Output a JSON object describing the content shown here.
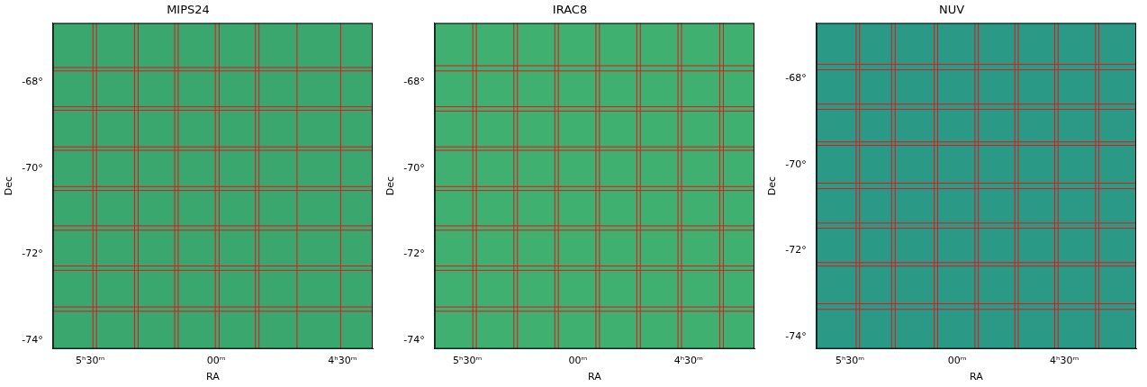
{
  "chart_data": [
    {
      "type": "map",
      "title": "MIPS24",
      "x_label": "RA",
      "y_label": "Dec",
      "grid": false,
      "color": "#e8141c",
      "xlim": [
        5.648,
        4.38
      ],
      "xticks": [
        {
          "value": 5.5,
          "label": "5ʰ30ᵐ"
        },
        {
          "value": 5.0,
          "label": "00ᵐ"
        },
        {
          "value": 4.5,
          "label": "4ʰ30ᵐ"
        }
      ],
      "ylim": [
        -74.19,
        -66.64
      ],
      "yticks": [
        {
          "value": -68,
          "label": "-68°"
        },
        {
          "value": -70,
          "label": "-70°"
        },
        {
          "value": -72,
          "label": "-72°"
        },
        {
          "value": -74,
          "label": "-74°"
        }
      ],
      "vlines": [
        5.489,
        5.475,
        5.324,
        5.31,
        5.165,
        5.151,
        5.004,
        4.989,
        4.845,
        4.831,
        4.68,
        4.507
      ],
      "hlines": [
        -67.67,
        -67.75,
        -68.58,
        -68.66,
        -69.51,
        -69.59,
        -70.43,
        -70.52,
        -71.34,
        -71.44,
        -72.27,
        -72.37,
        -73.22,
        -73.32
      ]
    },
    {
      "type": "map",
      "title": "IRAC8",
      "x_label": "RA",
      "y_label": "Dec",
      "grid": false,
      "color": "#e8141c",
      "xlim": [
        5.649,
        4.202
      ],
      "xticks": [
        {
          "value": 5.5,
          "label": "5ʰ30ᵐ"
        },
        {
          "value": 5.0,
          "label": "00ᵐ"
        },
        {
          "value": 4.5,
          "label": "4ʰ30ᵐ"
        }
      ],
      "ylim": [
        -74.19,
        -66.64
      ],
      "yticks": [
        {
          "value": -68,
          "label": "-68°"
        },
        {
          "value": -70,
          "label": "-70°"
        },
        {
          "value": -72,
          "label": "-72°"
        },
        {
          "value": -74,
          "label": "-74°"
        }
      ],
      "vlines": [
        5.476,
        5.46,
        5.29,
        5.274,
        5.105,
        5.089,
        4.919,
        4.903,
        4.734,
        4.718,
        4.548,
        4.532,
        4.359,
        4.343
      ],
      "hlines": [
        -67.63,
        -67.75,
        -68.58,
        -68.68,
        -69.51,
        -69.59,
        -70.43,
        -70.52,
        -71.34,
        -71.44,
        -72.27,
        -72.37,
        -73.22,
        -73.32
      ]
    },
    {
      "type": "map",
      "title": "NUV",
      "x_label": "RA",
      "y_label": "Dec",
      "grid": false,
      "color": "#e8141c",
      "xlim": [
        5.657,
        4.165
      ],
      "xticks": [
        {
          "value": 5.5,
          "label": "5ʰ30ᵐ"
        },
        {
          "value": 5.0,
          "label": "00ᵐ"
        },
        {
          "value": 4.5,
          "label": "4ʰ30ᵐ"
        }
      ],
      "ylim": [
        -74.29,
        -66.7
      ],
      "yticks": [
        {
          "value": -68,
          "label": "-68°"
        },
        {
          "value": -70,
          "label": "-70°"
        },
        {
          "value": -72,
          "label": "-72°"
        },
        {
          "value": -74,
          "label": "-74°"
        }
      ],
      "vlines": [
        5.471,
        5.455,
        5.306,
        5.289,
        5.107,
        5.091,
        4.917,
        4.901,
        4.731,
        4.715,
        4.545,
        4.529,
        4.355,
        4.339
      ],
      "hlines": [
        -67.66,
        -67.79,
        -68.59,
        -68.71,
        -69.47,
        -69.55,
        -70.43,
        -70.56,
        -71.36,
        -71.48,
        -72.28,
        -72.36,
        -73.24,
        -73.37
      ]
    }
  ]
}
